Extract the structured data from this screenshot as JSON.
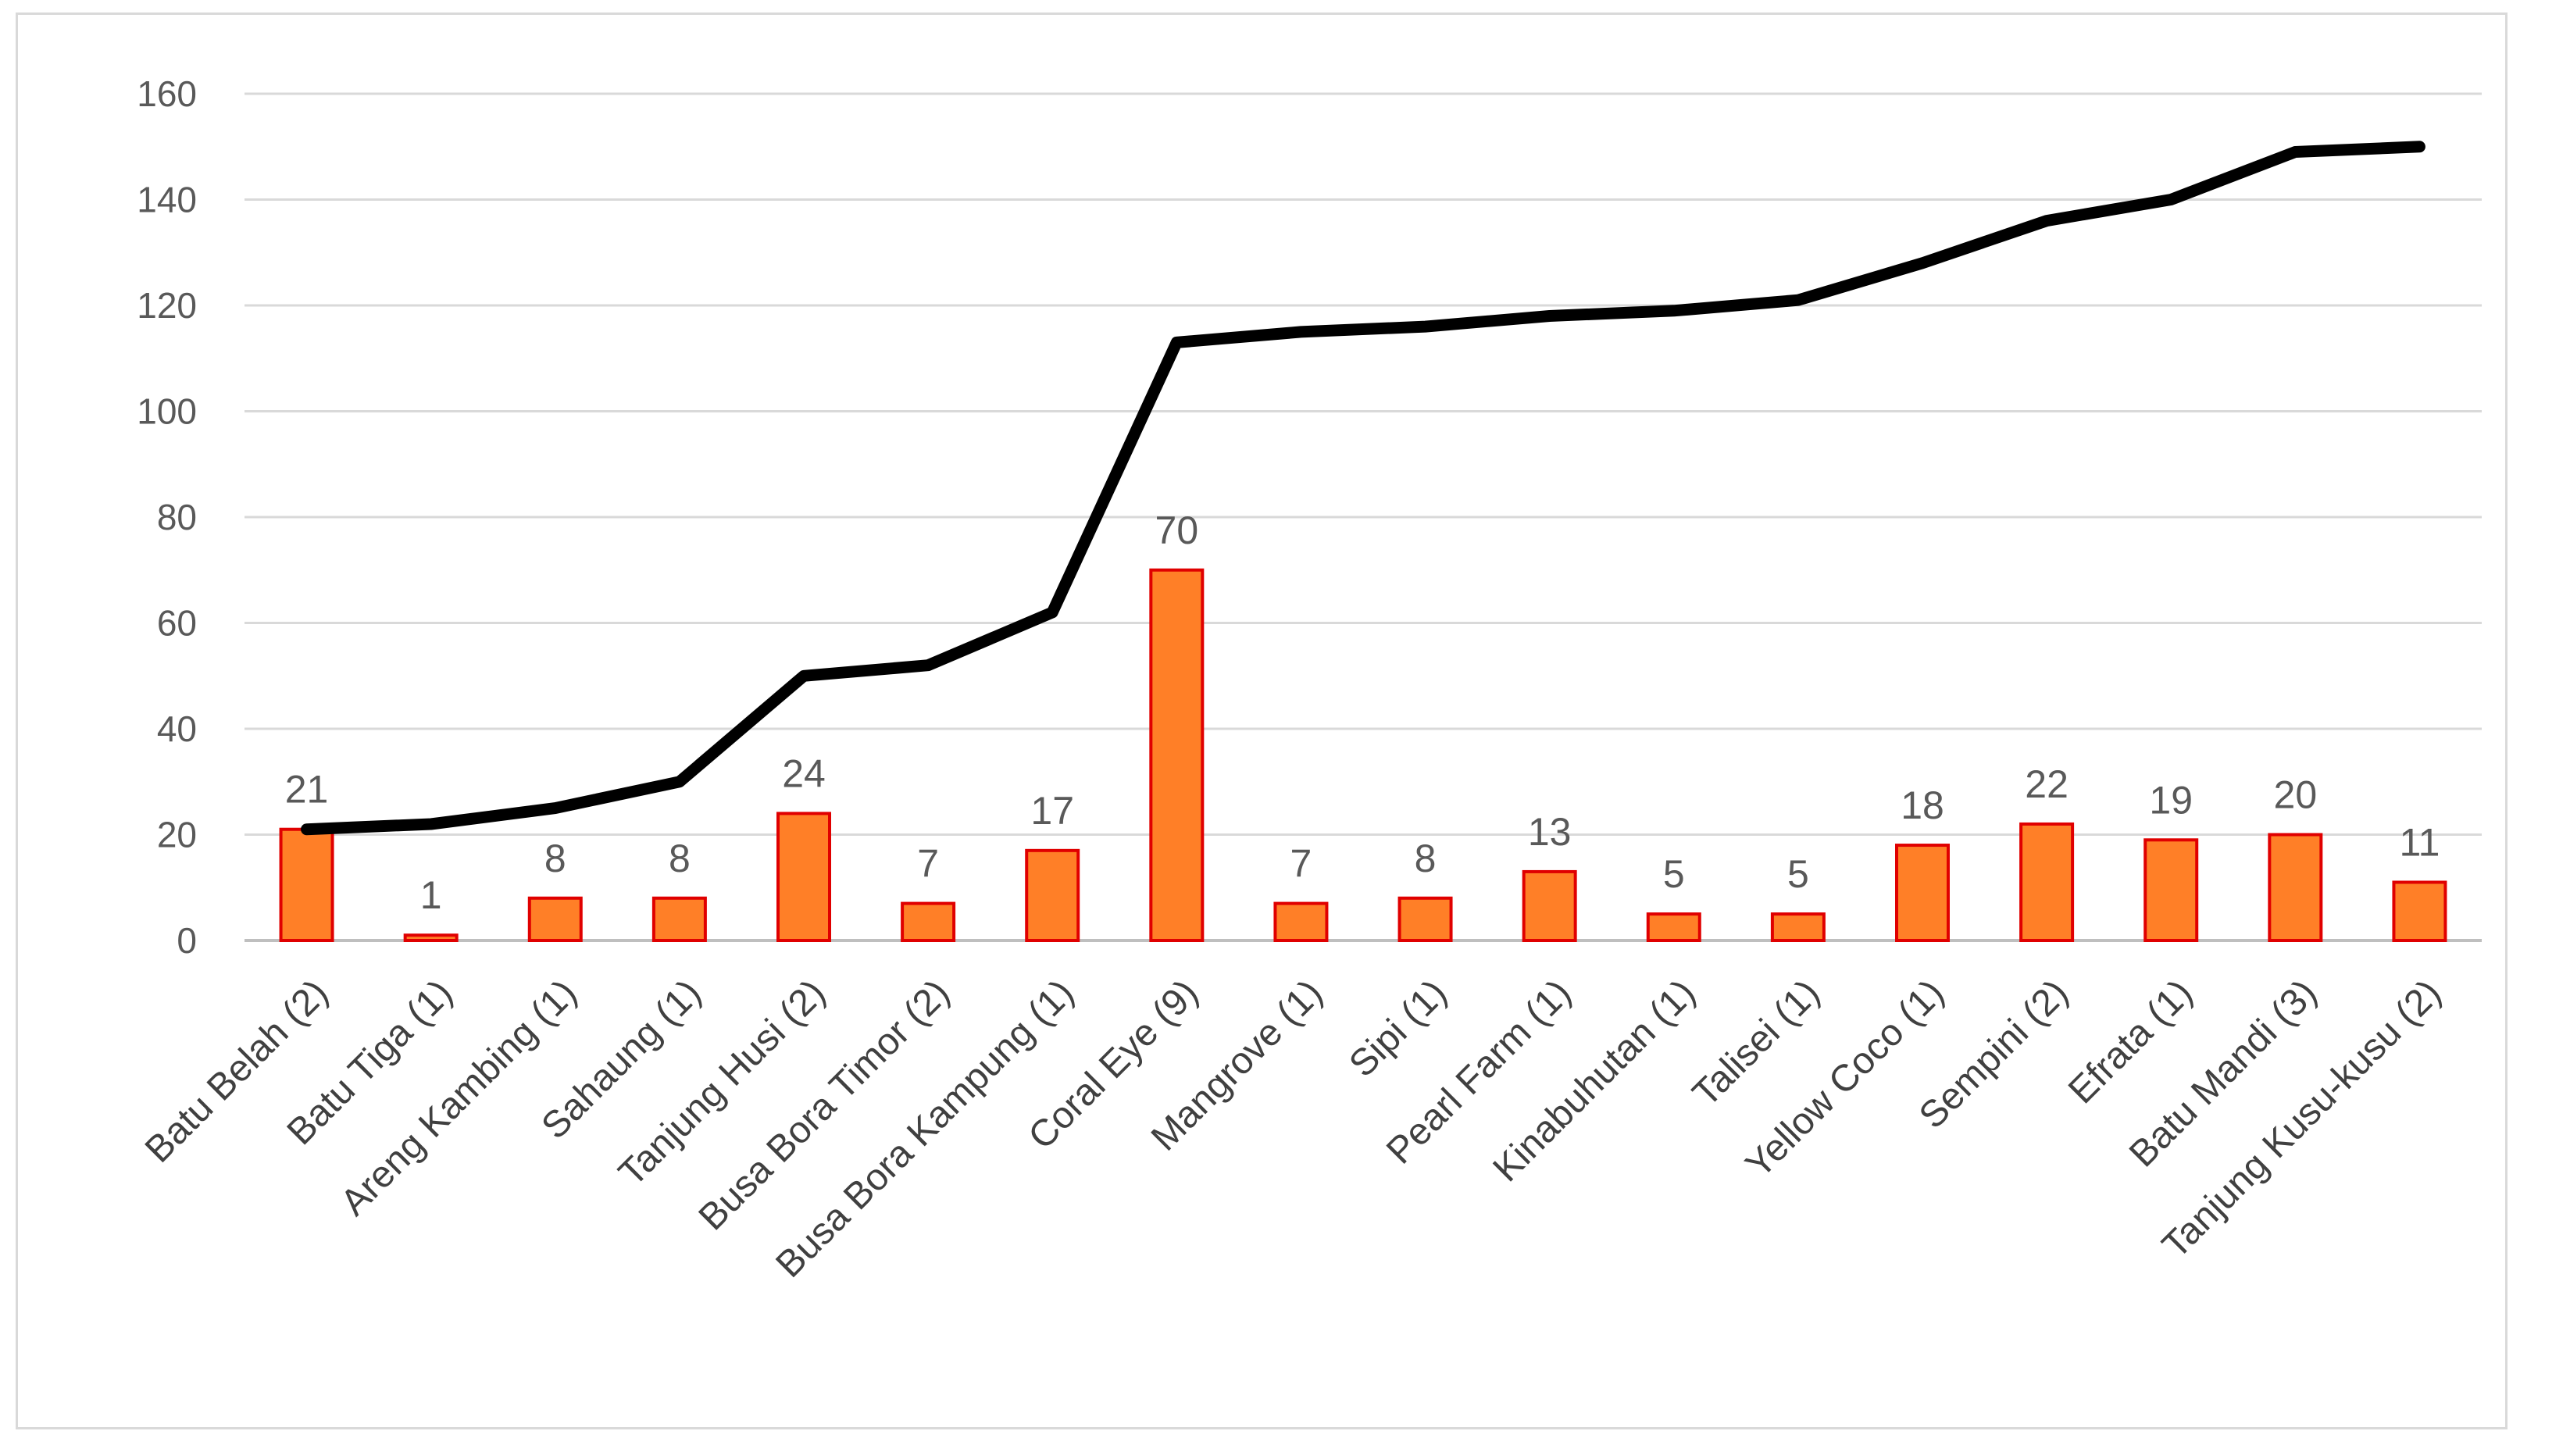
{
  "chart_data": {
    "type": "bar",
    "categories": [
      "Batu Belah (2)",
      "Batu Tiga (1)",
      "Areng Kambing (1)",
      "Sahaung (1)",
      "Tanjung Husi (2)",
      "Busa Bora Timor (2)",
      "Busa Bora Kampung (1)",
      "Coral Eye (9)",
      "Mangrove (1)",
      "Sipi (1)",
      "Pearl Farm (1)",
      "Kinabuhutan (1)",
      "Talisei (1)",
      "Yellow Coco (1)",
      "Sempini (2)",
      "Efrata (1)",
      "Batu Mandi (3)",
      "Tanjung Kusu-kusu (2)"
    ],
    "series": [
      {
        "type": "bar",
        "values": [
          21,
          1,
          8,
          8,
          24,
          7,
          17,
          70,
          7,
          8,
          13,
          5,
          5,
          18,
          22,
          19,
          20,
          11
        ],
        "data_labels": [
          "21",
          "1",
          "8",
          "8",
          "24",
          "7",
          "17",
          "70",
          "7",
          "8",
          "13",
          "5",
          "5",
          "18",
          "22",
          "19",
          "20",
          "11"
        ],
        "fill": "#FF7F27",
        "stroke": "#E00000"
      },
      {
        "type": "line",
        "values": [
          21,
          22,
          25,
          30,
          50,
          52,
          62,
          113,
          115,
          116,
          118,
          119,
          121,
          128,
          136,
          140,
          149,
          150
        ],
        "color": "#000000"
      }
    ],
    "yticks": [
      "0",
      "20",
      "40",
      "60",
      "80",
      "100",
      "120",
      "140",
      "160"
    ],
    "ylim": [
      0,
      160
    ],
    "grid": true,
    "legend": "none"
  }
}
